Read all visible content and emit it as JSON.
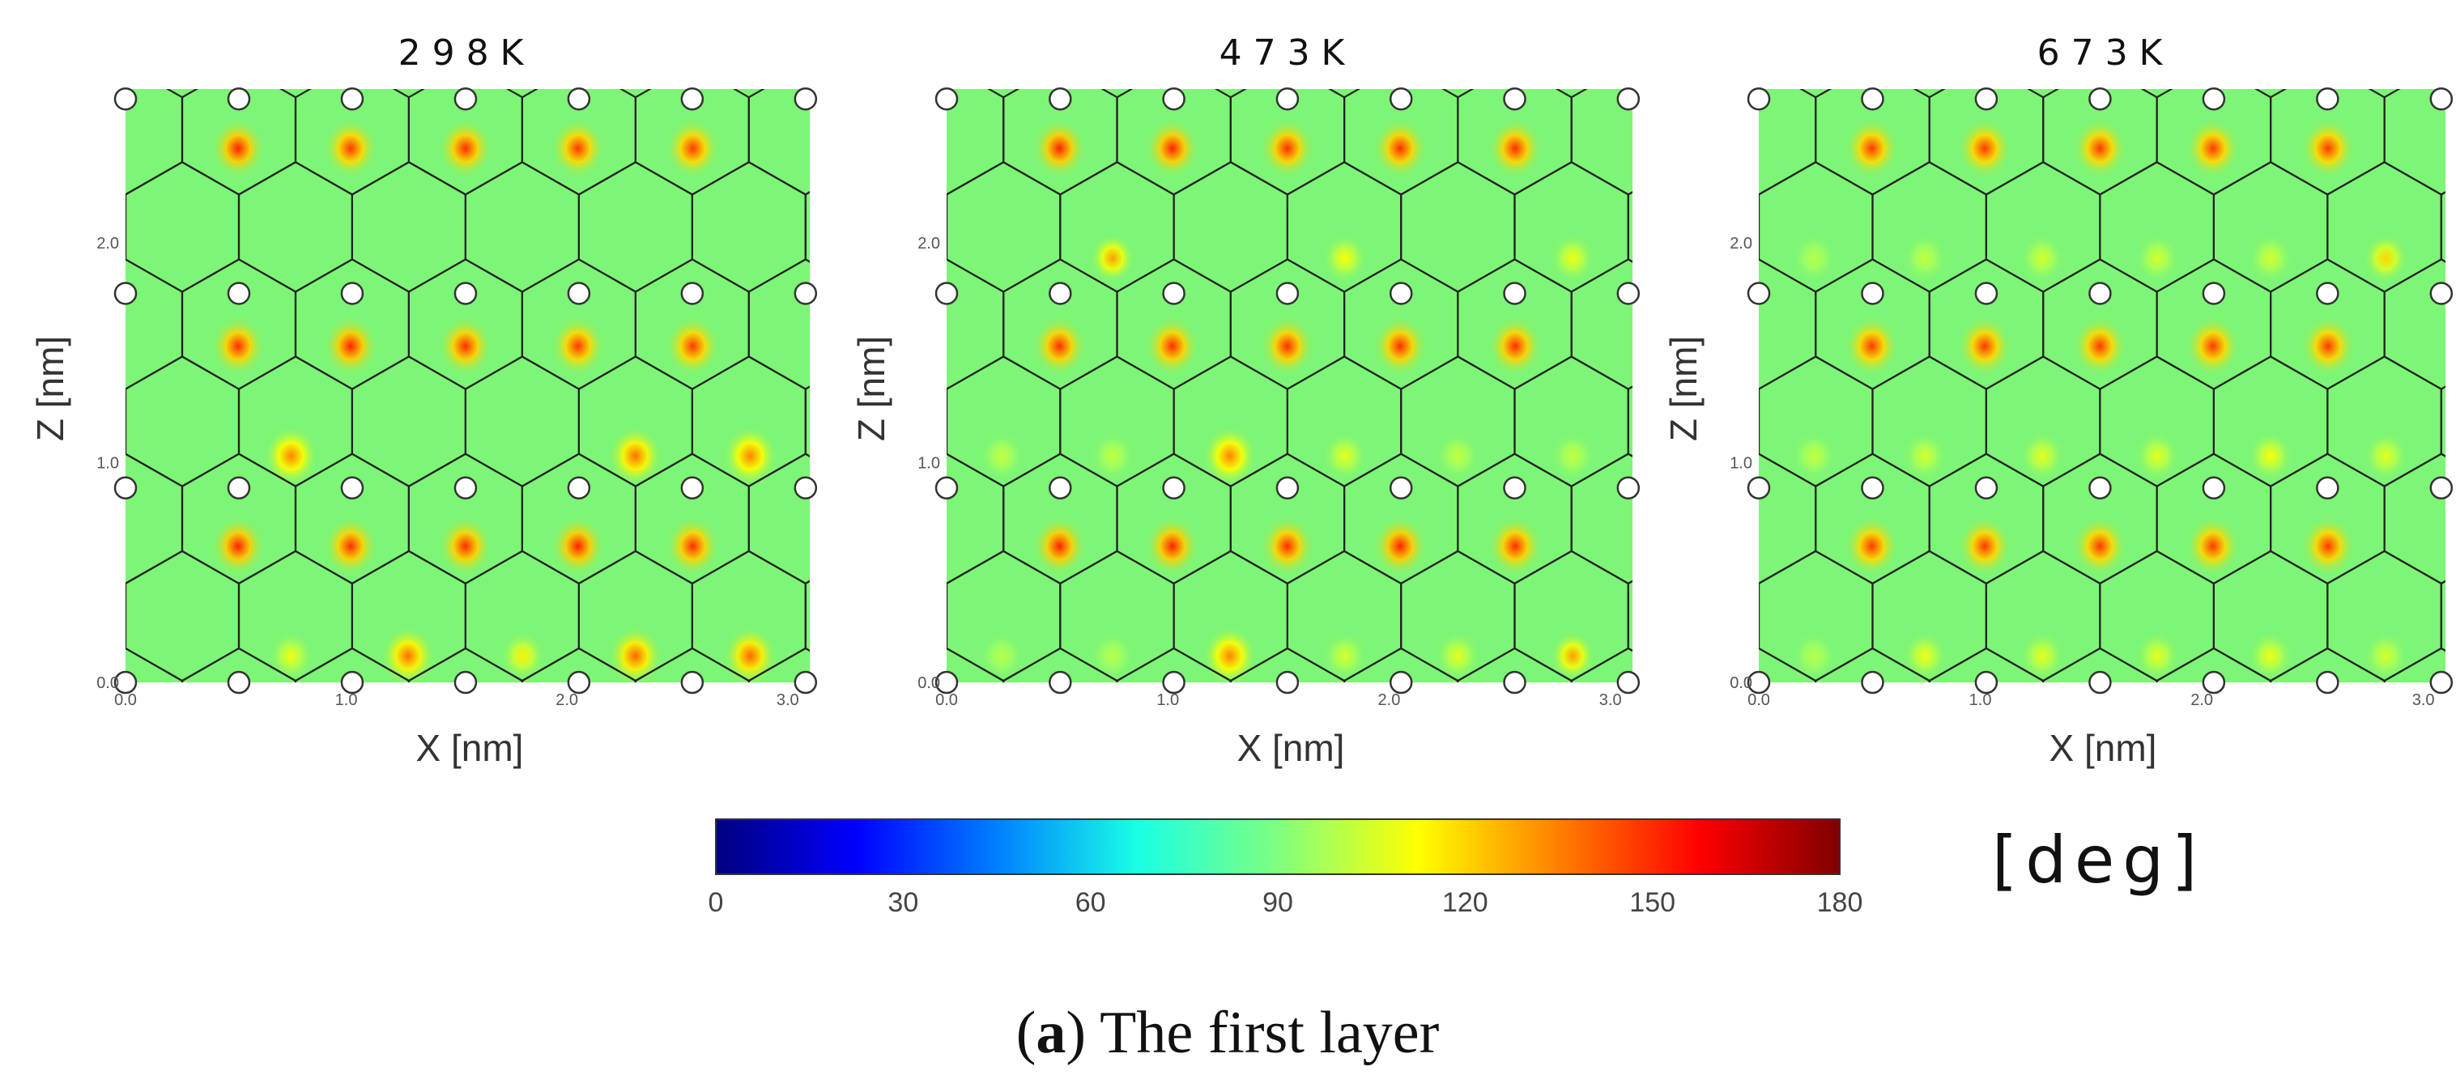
{
  "chart_data": {
    "type": "heatmap",
    "caption": {
      "open": "(",
      "letter": "a",
      "text": ") The first layer"
    },
    "colorbar": {
      "min": 0,
      "max": 180,
      "ticks": [
        "0",
        "30",
        "60",
        "90",
        "120",
        "150",
        "180"
      ],
      "unit": "[deg]",
      "colormap": "jet",
      "stops": [
        "#00007f",
        "#0000ff",
        "#007fff",
        "#19ffe4",
        "#7fff7f",
        "#ffff00",
        "#ff7f00",
        "#ff0000",
        "#7f0000"
      ]
    },
    "background_color": "#7df576",
    "panels": [
      {
        "title": "298K",
        "xlabel": "X [nm]",
        "ylabel": "Z [nm]",
        "xlim": [
          0,
          3.1
        ],
        "ylim": [
          0,
          2.7
        ],
        "xticks": [
          "0.0",
          "1.0",
          "2.0",
          "3.0"
        ],
        "yticks": [
          "0.0",
          "1.0",
          "2.0"
        ],
        "spots": [
          {
            "x": 0.51,
            "z": 2.43,
            "v": 152
          },
          {
            "x": 1.02,
            "z": 2.43,
            "v": 148
          },
          {
            "x": 1.54,
            "z": 2.43,
            "v": 150
          },
          {
            "x": 2.05,
            "z": 2.43,
            "v": 148
          },
          {
            "x": 2.57,
            "z": 2.43,
            "v": 148
          },
          {
            "x": 0.51,
            "z": 1.53,
            "v": 150
          },
          {
            "x": 1.02,
            "z": 1.53,
            "v": 152
          },
          {
            "x": 1.54,
            "z": 1.53,
            "v": 150
          },
          {
            "x": 2.05,
            "z": 1.53,
            "v": 148
          },
          {
            "x": 2.57,
            "z": 1.53,
            "v": 148
          },
          {
            "x": 0.75,
            "z": 1.03,
            "v": 135
          },
          {
            "x": 2.31,
            "z": 1.03,
            "v": 138
          },
          {
            "x": 2.83,
            "z": 1.03,
            "v": 135
          },
          {
            "x": 0.51,
            "z": 0.62,
            "v": 152
          },
          {
            "x": 1.02,
            "z": 0.62,
            "v": 150
          },
          {
            "x": 1.54,
            "z": 0.62,
            "v": 150
          },
          {
            "x": 2.05,
            "z": 0.62,
            "v": 152
          },
          {
            "x": 2.57,
            "z": 0.62,
            "v": 150
          },
          {
            "x": 0.75,
            "z": 0.12,
            "v": 110
          },
          {
            "x": 1.28,
            "z": 0.12,
            "v": 138
          },
          {
            "x": 1.8,
            "z": 0.12,
            "v": 115
          },
          {
            "x": 2.31,
            "z": 0.12,
            "v": 140
          },
          {
            "x": 2.83,
            "z": 0.12,
            "v": 140
          }
        ]
      },
      {
        "title": "473K",
        "xlabel": "X [nm]",
        "ylabel": "Z [nm]",
        "xlim": [
          0,
          3.1
        ],
        "ylim": [
          0,
          2.7
        ],
        "xticks": [
          "0.0",
          "1.0",
          "2.0",
          "3.0"
        ],
        "yticks": [
          "0.0",
          "1.0",
          "2.0"
        ],
        "spots": [
          {
            "x": 0.51,
            "z": 2.43,
            "v": 152
          },
          {
            "x": 1.02,
            "z": 2.43,
            "v": 152
          },
          {
            "x": 1.54,
            "z": 2.43,
            "v": 150
          },
          {
            "x": 2.05,
            "z": 2.43,
            "v": 150
          },
          {
            "x": 2.57,
            "z": 2.43,
            "v": 150
          },
          {
            "x": 0.75,
            "z": 1.93,
            "v": 130
          },
          {
            "x": 1.8,
            "z": 1.93,
            "v": 112
          },
          {
            "x": 2.83,
            "z": 1.93,
            "v": 110
          },
          {
            "x": 0.51,
            "z": 1.53,
            "v": 150
          },
          {
            "x": 1.02,
            "z": 1.53,
            "v": 150
          },
          {
            "x": 1.54,
            "z": 1.53,
            "v": 150
          },
          {
            "x": 2.05,
            "z": 1.53,
            "v": 150
          },
          {
            "x": 2.57,
            "z": 1.53,
            "v": 150
          },
          {
            "x": 0.25,
            "z": 1.03,
            "v": 102
          },
          {
            "x": 0.75,
            "z": 1.03,
            "v": 102
          },
          {
            "x": 1.28,
            "z": 1.03,
            "v": 135
          },
          {
            "x": 1.8,
            "z": 1.03,
            "v": 108
          },
          {
            "x": 2.31,
            "z": 1.03,
            "v": 102
          },
          {
            "x": 2.83,
            "z": 1.03,
            "v": 102
          },
          {
            "x": 0.51,
            "z": 0.62,
            "v": 152
          },
          {
            "x": 1.02,
            "z": 0.62,
            "v": 152
          },
          {
            "x": 1.54,
            "z": 0.62,
            "v": 150
          },
          {
            "x": 2.05,
            "z": 0.62,
            "v": 152
          },
          {
            "x": 2.57,
            "z": 0.62,
            "v": 150
          },
          {
            "x": 0.25,
            "z": 0.12,
            "v": 100
          },
          {
            "x": 0.75,
            "z": 0.12,
            "v": 100
          },
          {
            "x": 1.28,
            "z": 0.12,
            "v": 135
          },
          {
            "x": 1.8,
            "z": 0.12,
            "v": 105
          },
          {
            "x": 2.31,
            "z": 0.12,
            "v": 108
          },
          {
            "x": 2.83,
            "z": 0.12,
            "v": 130
          }
        ]
      },
      {
        "title": "673K",
        "xlabel": "X [nm]",
        "ylabel": "Z [nm]",
        "xlim": [
          0,
          3.1
        ],
        "ylim": [
          0,
          2.7
        ],
        "xticks": [
          "0.0",
          "1.0",
          "2.0",
          "3.0"
        ],
        "yticks": [
          "0.0",
          "1.0",
          "2.0"
        ],
        "spots": [
          {
            "x": 0.51,
            "z": 2.43,
            "v": 148
          },
          {
            "x": 1.02,
            "z": 2.43,
            "v": 148
          },
          {
            "x": 1.54,
            "z": 2.43,
            "v": 148
          },
          {
            "x": 2.05,
            "z": 2.43,
            "v": 148
          },
          {
            "x": 2.57,
            "z": 2.43,
            "v": 148
          },
          {
            "x": 0.25,
            "z": 1.93,
            "v": 100
          },
          {
            "x": 0.75,
            "z": 1.93,
            "v": 102
          },
          {
            "x": 1.28,
            "z": 1.93,
            "v": 105
          },
          {
            "x": 1.8,
            "z": 1.93,
            "v": 105
          },
          {
            "x": 2.31,
            "z": 1.93,
            "v": 105
          },
          {
            "x": 2.83,
            "z": 1.93,
            "v": 120
          },
          {
            "x": 0.51,
            "z": 1.53,
            "v": 148
          },
          {
            "x": 1.02,
            "z": 1.53,
            "v": 148
          },
          {
            "x": 1.54,
            "z": 1.53,
            "v": 148
          },
          {
            "x": 2.05,
            "z": 1.53,
            "v": 148
          },
          {
            "x": 2.57,
            "z": 1.53,
            "v": 148
          },
          {
            "x": 0.25,
            "z": 1.03,
            "v": 102
          },
          {
            "x": 0.75,
            "z": 1.03,
            "v": 105
          },
          {
            "x": 1.28,
            "z": 1.03,
            "v": 108
          },
          {
            "x": 1.8,
            "z": 1.03,
            "v": 108
          },
          {
            "x": 2.31,
            "z": 1.03,
            "v": 112
          },
          {
            "x": 2.83,
            "z": 1.03,
            "v": 108
          },
          {
            "x": 0.51,
            "z": 0.62,
            "v": 148
          },
          {
            "x": 1.02,
            "z": 0.62,
            "v": 148
          },
          {
            "x": 1.54,
            "z": 0.62,
            "v": 148
          },
          {
            "x": 2.05,
            "z": 0.62,
            "v": 148
          },
          {
            "x": 2.57,
            "z": 0.62,
            "v": 148
          },
          {
            "x": 0.25,
            "z": 0.12,
            "v": 100
          },
          {
            "x": 0.75,
            "z": 0.12,
            "v": 110
          },
          {
            "x": 1.28,
            "z": 0.12,
            "v": 108
          },
          {
            "x": 1.8,
            "z": 0.12,
            "v": 108
          },
          {
            "x": 2.31,
            "z": 0.12,
            "v": 110
          },
          {
            "x": 2.83,
            "z": 0.12,
            "v": 105
          }
        ]
      }
    ]
  }
}
